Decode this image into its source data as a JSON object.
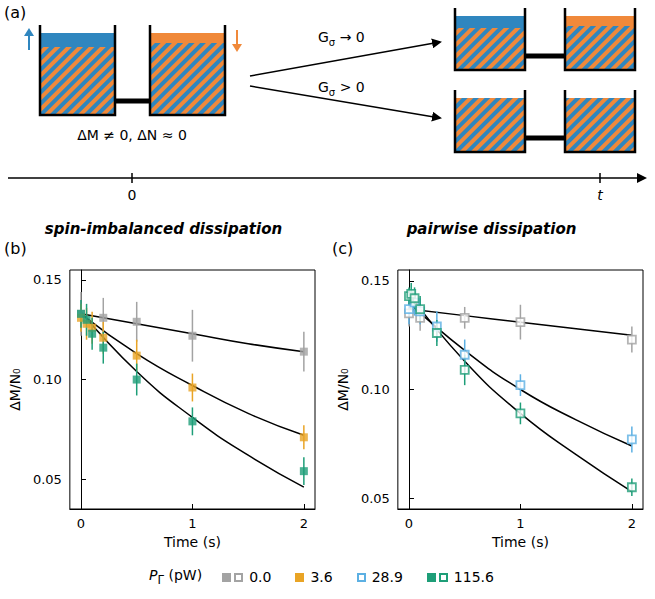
{
  "diagram": {
    "panel": "(a)",
    "caption": "ΔM ≠ 0, ΔN ≈ 0",
    "paths": [
      {
        "base": "G",
        "sub": "σ",
        "rest": " → 0"
      },
      {
        "base": "G",
        "sub": "σ",
        "rest": " > 0"
      }
    ],
    "time_axis": {
      "start": "0",
      "end": "t"
    }
  },
  "chart_data": [
    {
      "type": "scatter",
      "panel": "(b)",
      "title": "spin-imbalanced dissipation",
      "x_label": "Time (s)",
      "y_label": "ΔM/N₀",
      "xlim": [
        -0.1,
        2.1
      ],
      "xticks": [
        0,
        1,
        2
      ],
      "ylim": [
        0.035,
        0.155
      ],
      "yticks": [
        {
          "value": 0.05,
          "label": "0.05"
        },
        {
          "value": 0.1,
          "label": "0.10"
        },
        0.15
      ],
      "grid": false,
      "series": [
        {
          "name": "0.0",
          "color": "#a3a3a3",
          "marker": "square",
          "x": [
            0,
            0.2,
            0.5,
            1,
            2
          ],
          "values": [
            0.133,
            0.131,
            0.129,
            0.122,
            0.114
          ],
          "errors": [
            0.011,
            0.01,
            0.01,
            0.013,
            0.01
          ]
        },
        {
          "name": "3.6",
          "color": "#e9a425",
          "marker": "square",
          "x": [
            0,
            0.05,
            0.1,
            0.2,
            0.5,
            1,
            2
          ],
          "values": [
            0.131,
            0.128,
            0.126,
            0.121,
            0.112,
            0.096,
            0.071
          ],
          "errors": [
            0.007,
            0.008,
            0.008,
            0.008,
            0.008,
            0.007,
            0.006
          ]
        },
        {
          "name": "115.6",
          "color": "#1e9e78",
          "marker": "square",
          "x": [
            0,
            0.05,
            0.1,
            0.2,
            0.5,
            1,
            2
          ],
          "values": [
            0.133,
            0.13,
            0.123,
            0.116,
            0.1,
            0.079,
            0.054
          ],
          "errors": [
            0.007,
            0.008,
            0.008,
            0.008,
            0.008,
            0.007,
            0.007
          ]
        },
        {
          "type": "line",
          "color": "#000000",
          "line_style": "solid",
          "x": [
            0,
            0.5,
            1,
            1.5,
            2
          ],
          "values": [
            0.133,
            0.128,
            0.123,
            0.118,
            0.114
          ]
        },
        {
          "type": "line",
          "color": "#000000",
          "line_style": "solid",
          "x": [
            0,
            0.5,
            1,
            1.5,
            2
          ],
          "values": [
            0.133,
            0.113,
            0.097,
            0.083,
            0.072
          ]
        },
        {
          "type": "line",
          "color": "#000000",
          "line_style": "solid",
          "x": [
            0,
            0.5,
            1,
            1.5,
            2
          ],
          "values": [
            0.134,
            0.104,
            0.081,
            0.062,
            0.046
          ]
        }
      ]
    },
    {
      "type": "scatter",
      "panel": "(c)",
      "title": "pairwise dissipation",
      "x_label": "Time (s)",
      "y_label": "ΔM/N₀",
      "xlim": [
        -0.1,
        2.1
      ],
      "xticks": [
        0,
        1,
        2
      ],
      "ylim": [
        0.045,
        0.155
      ],
      "yticks": [
        {
          "value": 0.05,
          "label": "0.05"
        },
        {
          "value": 0.1,
          "label": "0.10"
        },
        0.15
      ],
      "grid": false,
      "series": [
        {
          "name": "0.0",
          "color": "#a3a3a3",
          "marker": "square_open",
          "x": [
            0,
            0.1,
            0.5,
            1,
            2
          ],
          "values": [
            0.135,
            0.133,
            0.133,
            0.131,
            0.123
          ],
          "errors": [
            0.006,
            0.006,
            0.005,
            0.008,
            0.006
          ]
        },
        {
          "name": "28.9",
          "color": "#5cb0e3",
          "marker": "square_open",
          "x": [
            0,
            0.05,
            0.1,
            0.25,
            0.5,
            1,
            2
          ],
          "values": [
            0.137,
            0.14,
            0.136,
            0.129,
            0.116,
            0.102,
            0.077
          ],
          "errors": [
            0.007,
            0.006,
            0.006,
            0.007,
            0.007,
            0.005,
            0.006
          ]
        },
        {
          "name": "115.6",
          "color": "#1e9e78",
          "marker": "square_open",
          "x": [
            0,
            0.02,
            0.05,
            0.1,
            0.25,
            0.5,
            1,
            2
          ],
          "values": [
            0.143,
            0.144,
            0.142,
            0.137,
            0.126,
            0.109,
            0.089,
            0.055
          ],
          "errors": [
            0.004,
            0.005,
            0.005,
            0.006,
            0.006,
            0.007,
            0.005,
            0.004
          ]
        },
        {
          "type": "line",
          "color": "#000000",
          "line_style": "solid",
          "x": [
            0,
            0.5,
            1,
            1.5,
            2
          ],
          "values": [
            0.137,
            0.134,
            0.131,
            0.128,
            0.125
          ]
        },
        {
          "type": "line",
          "color": "#000000",
          "line_style": "solid",
          "x": [
            0,
            0.5,
            1,
            1.5,
            2
          ],
          "values": [
            0.14,
            0.118,
            0.1,
            0.086,
            0.074
          ]
        },
        {
          "type": "line",
          "color": "#000000",
          "line_style": "solid",
          "x": [
            0,
            0.5,
            1,
            1.5,
            2
          ],
          "values": [
            0.144,
            0.113,
            0.089,
            0.07,
            0.053
          ]
        }
      ]
    }
  ],
  "shared_legend": {
    "base": "P",
    "sub": "Γ",
    "rest": " (pW)",
    "entries": [
      {
        "name": "0.0",
        "color": "#a3a3a3",
        "markers": [
          "square",
          "square_open"
        ]
      },
      {
        "name": "3.6",
        "color": "#e9a425",
        "markers": [
          "square"
        ]
      },
      {
        "name": "28.9",
        "color": "#5cb0e3",
        "markers": [
          "square_open"
        ]
      },
      {
        "name": "115.6",
        "color": "#1e9e78",
        "markers": [
          "square",
          "square_open"
        ]
      }
    ]
  }
}
